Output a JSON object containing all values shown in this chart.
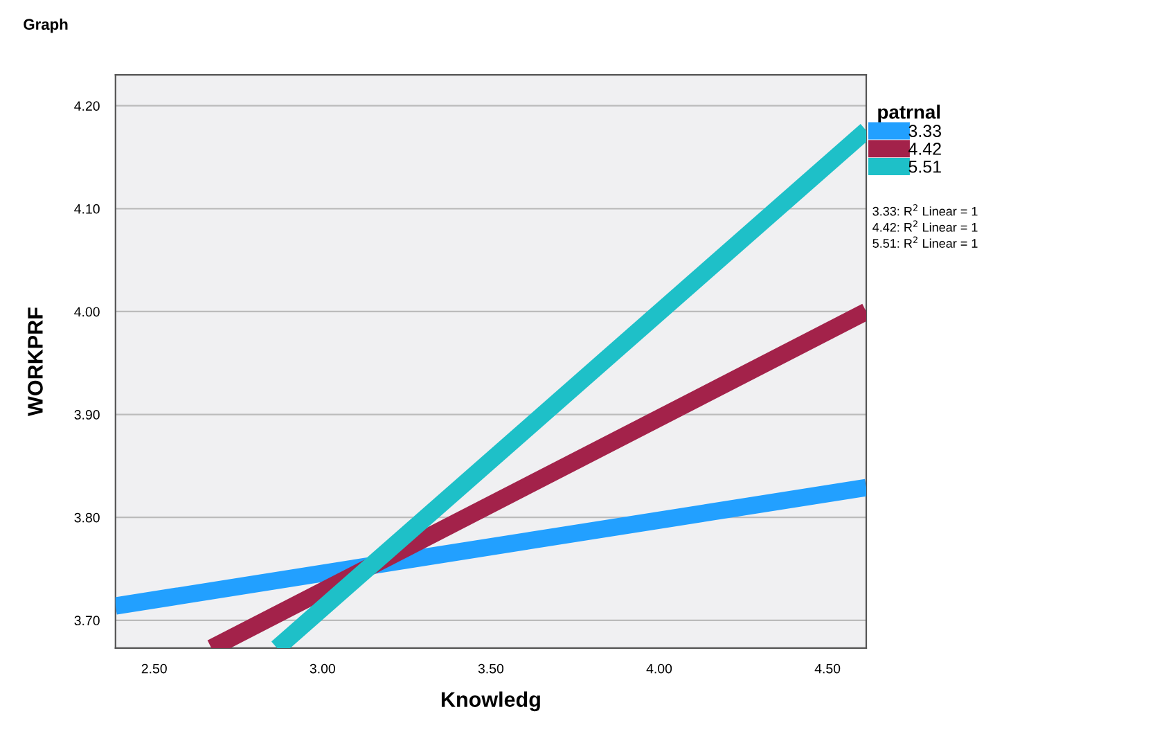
{
  "chart_data": {
    "type": "line",
    "title": "Graph",
    "xlabel": "Knowledg",
    "ylabel": "WORKPRF",
    "legend_title": "patrnal",
    "series": [
      {
        "name": "3.33",
        "color": "#22a0ff",
        "x": [
          2.385,
          4.615
        ],
        "values": [
          3.714,
          3.829
        ]
      },
      {
        "name": "4.42",
        "color": "#a3224a",
        "x": [
          2.67,
          4.615
        ],
        "values": [
          3.673,
          4.0
        ]
      },
      {
        "name": "5.51",
        "color": "#1ec0c8",
        "x": [
          2.865,
          4.615
        ],
        "values": [
          3.673,
          4.176
        ]
      }
    ],
    "xlim": [
      2.385,
      4.615
    ],
    "xticks": [
      {
        "value": 2.5,
        "label": "2.50"
      },
      {
        "value": 3.0,
        "label": "3.00"
      },
      {
        "value": 3.5,
        "label": "3.50"
      },
      {
        "value": 4.0,
        "label": "4.00"
      },
      {
        "value": 4.5,
        "label": "4.50"
      }
    ],
    "ylim": [
      3.673,
      4.23
    ],
    "yticks": [
      {
        "value": 3.7,
        "label": "3.70"
      },
      {
        "value": 3.8,
        "label": "3.80"
      },
      {
        "value": 3.9,
        "label": "3.90"
      },
      {
        "value": 4.0,
        "label": "4.00"
      },
      {
        "value": 4.1,
        "label": "4.10"
      },
      {
        "value": 4.2,
        "label": "4.20"
      }
    ],
    "grid": "y",
    "legend": "top right",
    "marker": "none",
    "line_style": "solid",
    "annotations": [
      "3.33: R$^{2}$ Linear = 1",
      "4.42: R$^{2}$ Linear = 1",
      "5.51: R$^{2}$ Linear = 1"
    ]
  }
}
